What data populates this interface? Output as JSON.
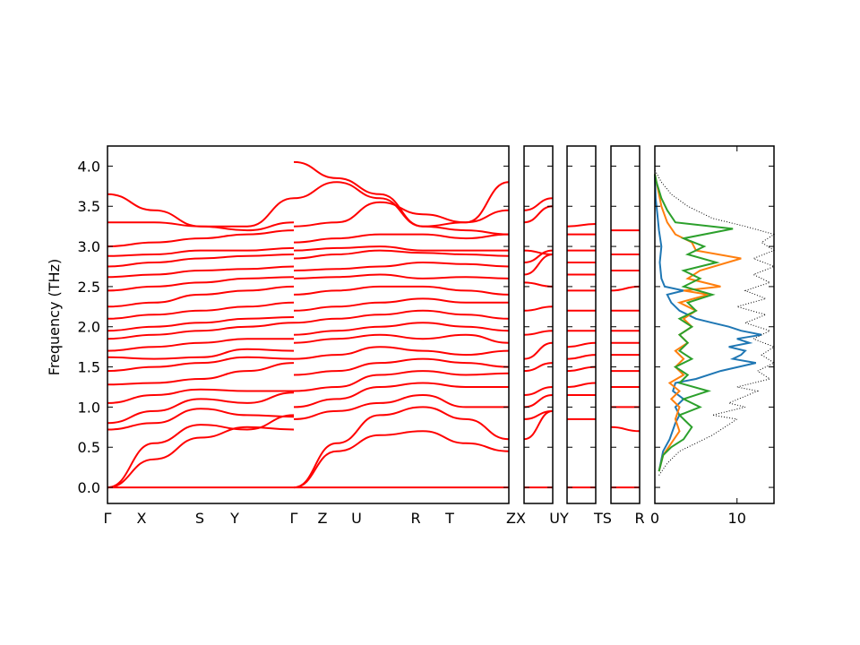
{
  "chart_data": {
    "type": "line",
    "ylabel": "Frequency (THz)",
    "ylim": [
      -0.2,
      4.25
    ],
    "yticks": [
      "0.0",
      "0.5",
      "1.0",
      "1.5",
      "2.0",
      "2.5",
      "3.0",
      "3.5",
      "4.0"
    ],
    "band_color": "#ff0000",
    "zero_line_color": "#0000ff",
    "segments_labels": [
      [
        "Γ",
        "X",
        "S",
        "Y",
        "Γ",
        "Z",
        "U",
        "R",
        "T",
        "Z"
      ],
      [
        "X",
        "U"
      ],
      [
        "Y",
        "T"
      ],
      [
        "S",
        "R"
      ]
    ],
    "segment_xlabel_text": {
      "gx": "Γ",
      "x": "X",
      "s": "S",
      "y": "Y",
      "g2": "Γ",
      "z": "Z",
      "u": "U",
      "r": "R",
      "t": "T",
      "zx": "ZX",
      "uy": "UY",
      "ts": "TS",
      "r2": "R"
    },
    "bands_panel1_left": [
      [
        0.0,
        0.0,
        0.0,
        0.0,
        0.0
      ],
      [
        0.0,
        0.35,
        0.62,
        0.75,
        0.72
      ],
      [
        0.0,
        0.55,
        0.78,
        0.72,
        0.9
      ],
      [
        0.72,
        0.8,
        0.98,
        0.9,
        0.88
      ],
      [
        0.8,
        0.95,
        1.1,
        1.05,
        1.18
      ],
      [
        1.05,
        1.15,
        1.22,
        1.2,
        1.2
      ],
      [
        1.28,
        1.3,
        1.35,
        1.45,
        1.55
      ],
      [
        1.45,
        1.5,
        1.55,
        1.62,
        1.6
      ],
      [
        1.62,
        1.6,
        1.62,
        1.72,
        1.7
      ],
      [
        1.7,
        1.75,
        1.8,
        1.85,
        1.85
      ],
      [
        1.85,
        1.9,
        1.95,
        2.0,
        2.05
      ],
      [
        1.95,
        2.0,
        2.05,
        2.1,
        2.12
      ],
      [
        2.1,
        2.15,
        2.2,
        2.25,
        2.3
      ],
      [
        2.25,
        2.3,
        2.4,
        2.45,
        2.5
      ],
      [
        2.45,
        2.5,
        2.55,
        2.6,
        2.62
      ],
      [
        2.62,
        2.65,
        2.7,
        2.72,
        2.75
      ],
      [
        2.75,
        2.8,
        2.85,
        2.88,
        2.9
      ],
      [
        2.88,
        2.9,
        2.95,
        2.95,
        2.98
      ],
      [
        3.0,
        3.05,
        3.1,
        3.15,
        3.2
      ],
      [
        3.3,
        3.3,
        3.25,
        3.2,
        3.3
      ],
      [
        3.65,
        3.45,
        3.25,
        3.25,
        3.6
      ]
    ],
    "bands_panel1_right": [
      [
        0.0,
        0.0,
        0.0,
        0.0,
        0.0,
        0.0
      ],
      [
        0.0,
        0.45,
        0.65,
        0.7,
        0.55,
        0.45
      ],
      [
        0.0,
        0.55,
        0.9,
        1.0,
        0.85,
        0.6
      ],
      [
        0.85,
        0.95,
        1.05,
        1.15,
        1.0,
        1.0
      ],
      [
        1.0,
        1.1,
        1.25,
        1.3,
        1.25,
        1.25
      ],
      [
        1.2,
        1.25,
        1.4,
        1.45,
        1.4,
        1.42
      ],
      [
        1.4,
        1.45,
        1.55,
        1.6,
        1.55,
        1.5
      ],
      [
        1.6,
        1.65,
        1.75,
        1.7,
        1.65,
        1.7
      ],
      [
        1.8,
        1.85,
        1.9,
        1.85,
        1.9,
        1.8
      ],
      [
        1.9,
        1.95,
        2.0,
        2.05,
        2.0,
        1.95
      ],
      [
        2.05,
        2.1,
        2.15,
        2.2,
        2.15,
        2.1
      ],
      [
        2.2,
        2.25,
        2.3,
        2.35,
        2.3,
        2.3
      ],
      [
        2.4,
        2.45,
        2.5,
        2.5,
        2.45,
        2.4
      ],
      [
        2.6,
        2.62,
        2.65,
        2.6,
        2.62,
        2.6
      ],
      [
        2.7,
        2.72,
        2.75,
        2.8,
        2.78,
        2.75
      ],
      [
        2.85,
        2.9,
        2.95,
        2.92,
        2.9,
        2.88
      ],
      [
        2.95,
        2.98,
        3.0,
        2.95,
        2.95,
        2.95
      ],
      [
        3.05,
        3.1,
        3.15,
        3.15,
        3.1,
        3.15
      ],
      [
        3.25,
        3.3,
        3.55,
        3.4,
        3.3,
        3.45
      ],
      [
        3.6,
        3.8,
        3.6,
        3.25,
        3.3,
        3.8
      ],
      [
        4.05,
        3.85,
        3.65,
        3.25,
        3.2,
        3.15
      ]
    ],
    "bands_panel2": [
      [
        0.0,
        0.0
      ],
      [
        0.6,
        0.95
      ],
      [
        0.85,
        0.95
      ],
      [
        1.0,
        1.15
      ],
      [
        1.15,
        1.25
      ],
      [
        1.45,
        1.55
      ],
      [
        1.6,
        1.8
      ],
      [
        1.9,
        1.95
      ],
      [
        2.2,
        2.25
      ],
      [
        2.55,
        2.5
      ],
      [
        2.65,
        2.9
      ],
      [
        2.8,
        2.95
      ],
      [
        2.95,
        2.9
      ],
      [
        3.3,
        3.5
      ],
      [
        3.45,
        3.6
      ]
    ],
    "bands_panel3": [
      [
        0.0,
        0.0
      ],
      [
        0.85,
        0.85
      ],
      [
        1.15,
        1.15
      ],
      [
        1.25,
        1.3
      ],
      [
        1.45,
        1.5
      ],
      [
        1.6,
        1.65
      ],
      [
        1.75,
        1.8
      ],
      [
        1.95,
        1.95
      ],
      [
        2.2,
        2.2
      ],
      [
        2.45,
        2.45
      ],
      [
        2.65,
        2.65
      ],
      [
        2.8,
        2.8
      ],
      [
        2.95,
        2.95
      ],
      [
        3.15,
        3.15
      ],
      [
        3.25,
        3.28
      ]
    ],
    "bands_panel4": [
      [
        0.0,
        0.0
      ],
      [
        0.75,
        0.7
      ],
      [
        1.0,
        1.0
      ],
      [
        1.25,
        1.25
      ],
      [
        1.45,
        1.45
      ],
      [
        1.65,
        1.65
      ],
      [
        1.8,
        1.8
      ],
      [
        1.95,
        1.95
      ],
      [
        2.2,
        2.2
      ],
      [
        2.45,
        2.5
      ],
      [
        2.7,
        2.7
      ],
      [
        2.9,
        2.9
      ],
      [
        3.2,
        3.2
      ]
    ],
    "dos_xlim": [
      0,
      14.5
    ],
    "dos_xticks": [
      "0",
      "10"
    ],
    "dos_series": [
      {
        "color": "#1f77b4",
        "points": [
          [
            0.5,
            0.2
          ],
          [
            1.0,
            0.45
          ],
          [
            1.8,
            0.6
          ],
          [
            2.5,
            0.8
          ],
          [
            3.0,
            0.9
          ],
          [
            2.5,
            1.0
          ],
          [
            3.5,
            1.1
          ],
          [
            2.2,
            1.2
          ],
          [
            2.5,
            1.3
          ],
          [
            5.0,
            1.35
          ],
          [
            8.0,
            1.45
          ],
          [
            12.3,
            1.55
          ],
          [
            9.5,
            1.6
          ],
          [
            10.5,
            1.65
          ],
          [
            11.0,
            1.7
          ],
          [
            9.0,
            1.75
          ],
          [
            11.5,
            1.8
          ],
          [
            10.0,
            1.85
          ],
          [
            13.0,
            1.9
          ],
          [
            10.5,
            1.95
          ],
          [
            9.0,
            2.0
          ],
          [
            7.0,
            2.05
          ],
          [
            5.0,
            2.1
          ],
          [
            3.0,
            2.2
          ],
          [
            2.0,
            2.3
          ],
          [
            1.5,
            2.4
          ],
          [
            3.5,
            2.45
          ],
          [
            1.2,
            2.5
          ],
          [
            0.8,
            2.6
          ],
          [
            0.6,
            2.8
          ],
          [
            0.8,
            3.0
          ],
          [
            0.5,
            3.2
          ],
          [
            0.3,
            3.4
          ],
          [
            0.1,
            3.6
          ],
          [
            0.0,
            3.9
          ]
        ]
      },
      {
        "color": "#ff7f0e",
        "points": [
          [
            0.5,
            0.2
          ],
          [
            1.0,
            0.4
          ],
          [
            2.0,
            0.55
          ],
          [
            3.0,
            0.7
          ],
          [
            2.5,
            0.85
          ],
          [
            3.0,
            1.0
          ],
          [
            2.0,
            1.1
          ],
          [
            3.0,
            1.2
          ],
          [
            1.8,
            1.3
          ],
          [
            3.5,
            1.4
          ],
          [
            2.5,
            1.5
          ],
          [
            3.5,
            1.6
          ],
          [
            2.5,
            1.7
          ],
          [
            4.0,
            1.8
          ],
          [
            3.0,
            1.9
          ],
          [
            4.5,
            2.0
          ],
          [
            3.5,
            2.1
          ],
          [
            5.0,
            2.2
          ],
          [
            3.0,
            2.3
          ],
          [
            6.5,
            2.4
          ],
          [
            3.5,
            2.45
          ],
          [
            8.0,
            2.5
          ],
          [
            4.0,
            2.6
          ],
          [
            5.5,
            2.7
          ],
          [
            10.5,
            2.85
          ],
          [
            5.0,
            2.95
          ],
          [
            4.5,
            3.05
          ],
          [
            2.5,
            3.15
          ],
          [
            1.5,
            3.3
          ],
          [
            0.8,
            3.5
          ],
          [
            0.4,
            3.7
          ],
          [
            0.0,
            3.9
          ]
        ]
      },
      {
        "color": "#2ca02c",
        "points": [
          [
            0.5,
            0.2
          ],
          [
            1.0,
            0.4
          ],
          [
            2.0,
            0.5
          ],
          [
            3.5,
            0.6
          ],
          [
            4.5,
            0.75
          ],
          [
            3.0,
            0.9
          ],
          [
            5.5,
            1.0
          ],
          [
            3.5,
            1.1
          ],
          [
            6.5,
            1.2
          ],
          [
            3.0,
            1.3
          ],
          [
            4.0,
            1.4
          ],
          [
            2.5,
            1.5
          ],
          [
            4.5,
            1.6
          ],
          [
            3.0,
            1.7
          ],
          [
            4.0,
            1.8
          ],
          [
            3.0,
            1.9
          ],
          [
            4.5,
            2.0
          ],
          [
            3.0,
            2.1
          ],
          [
            5.0,
            2.2
          ],
          [
            4.0,
            2.3
          ],
          [
            7.0,
            2.4
          ],
          [
            3.5,
            2.5
          ],
          [
            5.5,
            2.6
          ],
          [
            3.5,
            2.7
          ],
          [
            7.5,
            2.8
          ],
          [
            4.0,
            2.9
          ],
          [
            6.0,
            3.0
          ],
          [
            3.5,
            3.1
          ],
          [
            9.5,
            3.22
          ],
          [
            2.5,
            3.3
          ],
          [
            1.5,
            3.45
          ],
          [
            0.8,
            3.6
          ],
          [
            0.2,
            3.8
          ],
          [
            0.0,
            3.9
          ]
        ]
      },
      {
        "color": "#000000",
        "dotted": true,
        "points": [
          [
            0.5,
            0.15
          ],
          [
            1.5,
            0.3
          ],
          [
            3.0,
            0.45
          ],
          [
            5.0,
            0.55
          ],
          [
            7.0,
            0.65
          ],
          [
            10.0,
            0.85
          ],
          [
            7.0,
            0.9
          ],
          [
            11.0,
            1.0
          ],
          [
            9.0,
            1.05
          ],
          [
            12.5,
            1.2
          ],
          [
            10.0,
            1.25
          ],
          [
            14.0,
            1.35
          ],
          [
            12.5,
            1.45
          ],
          [
            14.5,
            1.55
          ],
          [
            13.0,
            1.65
          ],
          [
            14.5,
            1.75
          ],
          [
            12.0,
            1.85
          ],
          [
            14.0,
            1.95
          ],
          [
            11.0,
            2.05
          ],
          [
            13.5,
            2.15
          ],
          [
            10.0,
            2.25
          ],
          [
            13.5,
            2.35
          ],
          [
            11.0,
            2.45
          ],
          [
            14.0,
            2.55
          ],
          [
            12.0,
            2.65
          ],
          [
            14.5,
            2.75
          ],
          [
            12.0,
            2.85
          ],
          [
            14.5,
            2.95
          ],
          [
            13.0,
            3.05
          ],
          [
            14.5,
            3.15
          ],
          [
            11.0,
            3.25
          ],
          [
            7.0,
            3.35
          ],
          [
            4.0,
            3.5
          ],
          [
            2.0,
            3.65
          ],
          [
            0.8,
            3.8
          ],
          [
            0.0,
            3.95
          ]
        ]
      }
    ]
  }
}
